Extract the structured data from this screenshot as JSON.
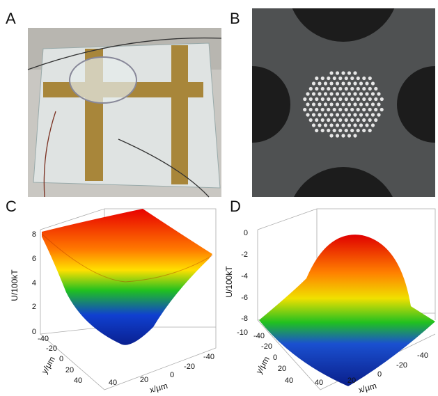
{
  "panels": [
    {
      "label": "A"
    },
    {
      "label": "B"
    },
    {
      "label": "C",
      "z_label": "U/100kT",
      "z_ticks": [
        "8",
        "6",
        "4",
        "2",
        "0"
      ],
      "y_label": "y/μm",
      "y_ticks": [
        "-40",
        "-20",
        "0",
        "20",
        "40"
      ],
      "x_label": "x/μm",
      "x_ticks": [
        "40",
        "20",
        "0",
        "-20",
        "-40"
      ]
    },
    {
      "label": "D",
      "z_label": "U/100kT",
      "z_ticks": [
        "0",
        "-2",
        "-4",
        "-6",
        "-8",
        "-10"
      ],
      "y_label": "y/μm",
      "y_ticks": [
        "-40",
        "-20",
        "0",
        "20",
        "40"
      ],
      "x_label": "x/μm",
      "x_ticks": [
        "40",
        "20",
        "0",
        "-20",
        "-40"
      ]
    }
  ]
}
